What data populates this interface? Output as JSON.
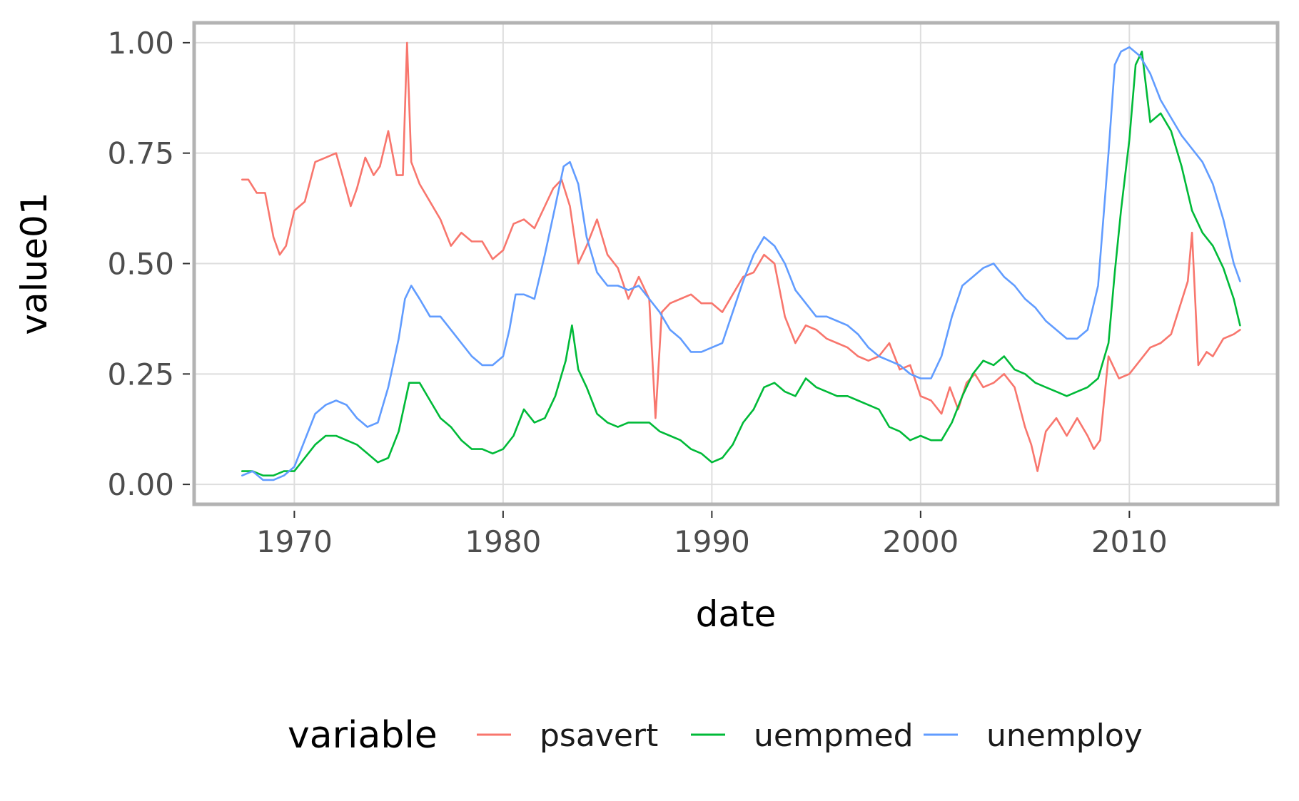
{
  "chart_data": {
    "type": "line",
    "title": "",
    "xlabel": "date",
    "ylabel": "value01",
    "xlim": [
      1965.2,
      2017.1
    ],
    "ylim": [
      -0.045,
      1.045
    ],
    "x_ticks": [
      1970,
      1980,
      1990,
      2000,
      2010
    ],
    "y_ticks": [
      0,
      0.25,
      0.5,
      0.75,
      1
    ],
    "y_tick_labels": [
      "0.00",
      "0.25",
      "0.50",
      "0.75",
      "1.00"
    ],
    "grid": true,
    "legend_position": "bottom",
    "legend_title": "variable",
    "series": [
      {
        "name": "psavert",
        "color": "#F8766D",
        "x": [
          1967.5,
          1967.8,
          1968.2,
          1968.6,
          1969.0,
          1969.3,
          1969.6,
          1970.0,
          1970.5,
          1971.0,
          1971.5,
          1972.0,
          1972.3,
          1972.7,
          1973.0,
          1973.4,
          1973.8,
          1974.1,
          1974.5,
          1974.9,
          1975.2,
          1975.4,
          1975.6,
          1976.0,
          1976.5,
          1977.0,
          1977.5,
          1978.0,
          1978.5,
          1979.0,
          1979.5,
          1980.0,
          1980.5,
          1981.0,
          1981.5,
          1982.0,
          1982.4,
          1982.8,
          1983.2,
          1983.6,
          1984.0,
          1984.5,
          1985.0,
          1985.5,
          1986.0,
          1986.5,
          1987.0,
          1987.3,
          1987.6,
          1988.0,
          1988.5,
          1989.0,
          1989.5,
          1990.0,
          1990.5,
          1991.0,
          1991.5,
          1992.0,
          1992.5,
          1993.0,
          1993.5,
          1994.0,
          1994.5,
          1995.0,
          1995.5,
          1996.0,
          1996.5,
          1997.0,
          1997.5,
          1998.0,
          1998.5,
          1999.0,
          1999.5,
          2000.0,
          2000.5,
          2001.0,
          2001.4,
          2001.8,
          2002.2,
          2002.6,
          2003.0,
          2003.5,
          2004.0,
          2004.5,
          2005.0,
          2005.3,
          2005.6,
          2006.0,
          2006.5,
          2007.0,
          2007.5,
          2008.0,
          2008.3,
          2008.6,
          2009.0,
          2009.5,
          2010.0,
          2010.5,
          2011.0,
          2011.5,
          2012.0,
          2012.4,
          2012.8,
          2013.0,
          2013.3,
          2013.7,
          2014.0,
          2014.5,
          2015.0,
          2015.3
        ],
        "values": [
          0.69,
          0.69,
          0.66,
          0.66,
          0.56,
          0.52,
          0.54,
          0.62,
          0.64,
          0.73,
          0.74,
          0.75,
          0.7,
          0.63,
          0.67,
          0.74,
          0.7,
          0.72,
          0.8,
          0.7,
          0.7,
          1.0,
          0.73,
          0.68,
          0.64,
          0.6,
          0.54,
          0.57,
          0.55,
          0.55,
          0.51,
          0.53,
          0.59,
          0.6,
          0.58,
          0.63,
          0.67,
          0.69,
          0.63,
          0.5,
          0.54,
          0.6,
          0.52,
          0.49,
          0.42,
          0.47,
          0.42,
          0.15,
          0.39,
          0.41,
          0.42,
          0.43,
          0.41,
          0.41,
          0.39,
          0.43,
          0.47,
          0.48,
          0.52,
          0.5,
          0.38,
          0.32,
          0.36,
          0.35,
          0.33,
          0.32,
          0.31,
          0.29,
          0.28,
          0.29,
          0.32,
          0.26,
          0.27,
          0.2,
          0.19,
          0.16,
          0.22,
          0.17,
          0.23,
          0.25,
          0.22,
          0.23,
          0.25,
          0.22,
          0.13,
          0.09,
          0.03,
          0.12,
          0.15,
          0.11,
          0.15,
          0.11,
          0.08,
          0.1,
          0.29,
          0.24,
          0.25,
          0.28,
          0.31,
          0.32,
          0.34,
          0.4,
          0.46,
          0.57,
          0.27,
          0.3,
          0.29,
          0.33,
          0.34,
          0.35
        ]
      },
      {
        "name": "uempmed",
        "color": "#00BA38",
        "x": [
          1967.5,
          1968.0,
          1968.5,
          1969.0,
          1969.5,
          1970.0,
          1970.5,
          1971.0,
          1971.5,
          1972.0,
          1972.5,
          1973.0,
          1973.5,
          1974.0,
          1974.5,
          1975.0,
          1975.5,
          1976.0,
          1976.5,
          1977.0,
          1977.5,
          1978.0,
          1978.5,
          1979.0,
          1979.5,
          1980.0,
          1980.5,
          1981.0,
          1981.5,
          1982.0,
          1982.5,
          1983.0,
          1983.3,
          1983.6,
          1984.0,
          1984.5,
          1985.0,
          1985.5,
          1986.0,
          1986.5,
          1987.0,
          1987.5,
          1988.0,
          1988.5,
          1989.0,
          1989.5,
          1990.0,
          1990.5,
          1991.0,
          1991.5,
          1992.0,
          1992.5,
          1993.0,
          1993.5,
          1994.0,
          1994.5,
          1995.0,
          1995.5,
          1996.0,
          1996.5,
          1997.0,
          1997.5,
          1998.0,
          1998.5,
          1999.0,
          1999.5,
          2000.0,
          2000.5,
          2001.0,
          2001.5,
          2002.0,
          2002.5,
          2003.0,
          2003.5,
          2004.0,
          2004.5,
          2005.0,
          2005.5,
          2006.0,
          2006.5,
          2007.0,
          2007.5,
          2008.0,
          2008.5,
          2009.0,
          2009.3,
          2009.6,
          2010.0,
          2010.3,
          2010.6,
          2011.0,
          2011.5,
          2012.0,
          2012.5,
          2013.0,
          2013.5,
          2014.0,
          2014.5,
          2015.0,
          2015.3
        ],
        "values": [
          0.03,
          0.03,
          0.02,
          0.02,
          0.03,
          0.03,
          0.06,
          0.09,
          0.11,
          0.11,
          0.1,
          0.09,
          0.07,
          0.05,
          0.06,
          0.12,
          0.23,
          0.23,
          0.19,
          0.15,
          0.13,
          0.1,
          0.08,
          0.08,
          0.07,
          0.08,
          0.11,
          0.17,
          0.14,
          0.15,
          0.2,
          0.28,
          0.36,
          0.26,
          0.22,
          0.16,
          0.14,
          0.13,
          0.14,
          0.14,
          0.14,
          0.12,
          0.11,
          0.1,
          0.08,
          0.07,
          0.05,
          0.06,
          0.09,
          0.14,
          0.17,
          0.22,
          0.23,
          0.21,
          0.2,
          0.24,
          0.22,
          0.21,
          0.2,
          0.2,
          0.19,
          0.18,
          0.17,
          0.13,
          0.12,
          0.1,
          0.11,
          0.1,
          0.1,
          0.14,
          0.2,
          0.25,
          0.28,
          0.27,
          0.29,
          0.26,
          0.25,
          0.23,
          0.22,
          0.21,
          0.2,
          0.21,
          0.22,
          0.24,
          0.32,
          0.48,
          0.62,
          0.78,
          0.95,
          0.98,
          0.82,
          0.84,
          0.8,
          0.72,
          0.62,
          0.57,
          0.54,
          0.49,
          0.42,
          0.36
        ]
      },
      {
        "name": "unemploy",
        "color": "#619CFF",
        "x": [
          1967.5,
          1968.0,
          1968.5,
          1969.0,
          1969.5,
          1970.0,
          1970.5,
          1971.0,
          1971.5,
          1972.0,
          1972.5,
          1973.0,
          1973.5,
          1974.0,
          1974.5,
          1975.0,
          1975.3,
          1975.6,
          1976.0,
          1976.5,
          1977.0,
          1977.5,
          1978.0,
          1978.5,
          1979.0,
          1979.5,
          1980.0,
          1980.3,
          1980.6,
          1981.0,
          1981.5,
          1982.0,
          1982.5,
          1982.9,
          1983.2,
          1983.6,
          1984.0,
          1984.5,
          1985.0,
          1985.5,
          1986.0,
          1986.5,
          1987.0,
          1987.5,
          1988.0,
          1988.5,
          1989.0,
          1989.5,
          1990.0,
          1990.5,
          1991.0,
          1991.5,
          1992.0,
          1992.5,
          1993.0,
          1993.5,
          1994.0,
          1994.5,
          1995.0,
          1995.5,
          1996.0,
          1996.5,
          1997.0,
          1997.5,
          1998.0,
          1998.5,
          1999.0,
          1999.5,
          2000.0,
          2000.5,
          2001.0,
          2001.5,
          2002.0,
          2002.5,
          2003.0,
          2003.5,
          2004.0,
          2004.5,
          2005.0,
          2005.5,
          2006.0,
          2006.5,
          2007.0,
          2007.5,
          2008.0,
          2008.5,
          2009.0,
          2009.3,
          2009.6,
          2010.0,
          2010.5,
          2011.0,
          2011.5,
          2012.0,
          2012.5,
          2013.0,
          2013.5,
          2014.0,
          2014.5,
          2015.0,
          2015.3
        ],
        "values": [
          0.02,
          0.03,
          0.01,
          0.01,
          0.02,
          0.04,
          0.1,
          0.16,
          0.18,
          0.19,
          0.18,
          0.15,
          0.13,
          0.14,
          0.22,
          0.33,
          0.42,
          0.45,
          0.42,
          0.38,
          0.38,
          0.35,
          0.32,
          0.29,
          0.27,
          0.27,
          0.29,
          0.35,
          0.43,
          0.43,
          0.42,
          0.52,
          0.63,
          0.72,
          0.73,
          0.68,
          0.56,
          0.48,
          0.45,
          0.45,
          0.44,
          0.45,
          0.42,
          0.39,
          0.35,
          0.33,
          0.3,
          0.3,
          0.31,
          0.32,
          0.39,
          0.46,
          0.52,
          0.56,
          0.54,
          0.5,
          0.44,
          0.41,
          0.38,
          0.38,
          0.37,
          0.36,
          0.34,
          0.31,
          0.29,
          0.28,
          0.27,
          0.25,
          0.24,
          0.24,
          0.29,
          0.38,
          0.45,
          0.47,
          0.49,
          0.5,
          0.47,
          0.45,
          0.42,
          0.4,
          0.37,
          0.35,
          0.33,
          0.33,
          0.35,
          0.45,
          0.75,
          0.95,
          0.98,
          0.99,
          0.97,
          0.93,
          0.87,
          0.83,
          0.79,
          0.76,
          0.73,
          0.68,
          0.6,
          0.5,
          0.46
        ]
      }
    ]
  }
}
